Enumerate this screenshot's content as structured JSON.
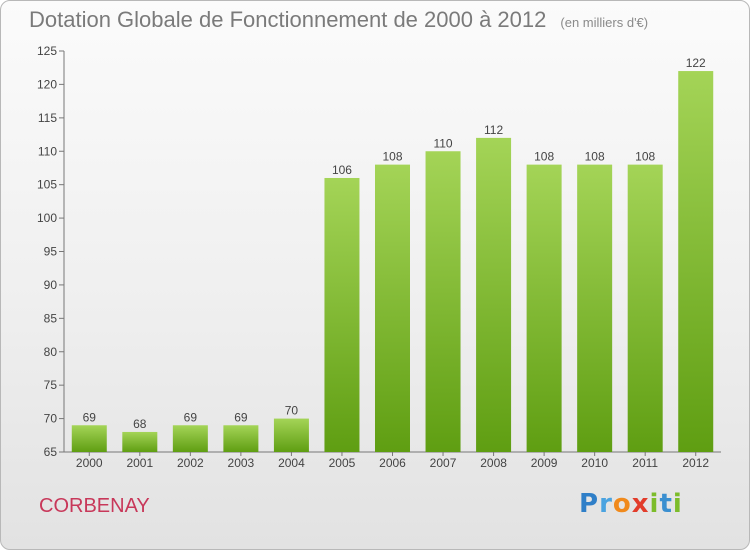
{
  "header": {
    "title": "Dotation Globale de Fonctionnement de 2000 à 2012",
    "unit": "(en milliers d'€)"
  },
  "footer": {
    "commune": "CORBENAY",
    "logo": "Proxiti"
  },
  "colors": {
    "bar_top": "#a4d457",
    "bar_bottom": "#5f9e12",
    "title": "#7a7a7a",
    "commune": "#c8385a"
  },
  "chart_data": {
    "type": "bar",
    "title": "Dotation Globale de Fonctionnement de 2000 à 2012",
    "subtitle": "(en milliers d'€)",
    "categories": [
      "2000",
      "2001",
      "2002",
      "2003",
      "2004",
      "2005",
      "2006",
      "2007",
      "2008",
      "2009",
      "2010",
      "2011",
      "2012"
    ],
    "values": [
      69,
      68,
      69,
      69,
      70,
      106,
      108,
      110,
      112,
      108,
      108,
      108,
      122
    ],
    "ylim": [
      65,
      125
    ],
    "yticks": [
      65,
      70,
      75,
      80,
      85,
      90,
      95,
      100,
      105,
      110,
      115,
      120,
      125
    ],
    "grid": false,
    "data_labels": true
  }
}
